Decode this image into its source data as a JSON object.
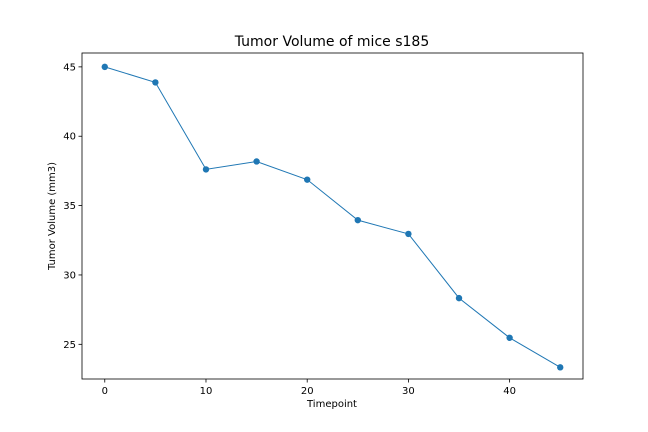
{
  "chart_data": {
    "type": "line",
    "title": "Tumor Volume of mice s185",
    "xlabel": "Timepoint",
    "ylabel": "Tumor Volume (mm3)",
    "xlim": [
      -2.25,
      47.25
    ],
    "ylim": [
      22.5,
      46.0
    ],
    "xticks": [
      0,
      10,
      20,
      30,
      40
    ],
    "yticks": [
      25,
      30,
      35,
      40,
      45
    ],
    "grid": false,
    "series": [
      {
        "color": "#1f77b4",
        "marker": "circle",
        "x": [
          0,
          5,
          10,
          15,
          20,
          25,
          30,
          35,
          40,
          45
        ],
        "y": [
          45.0,
          43.88,
          37.61,
          38.18,
          36.87,
          33.95,
          32.96,
          28.33,
          25.47,
          23.34
        ]
      }
    ]
  }
}
